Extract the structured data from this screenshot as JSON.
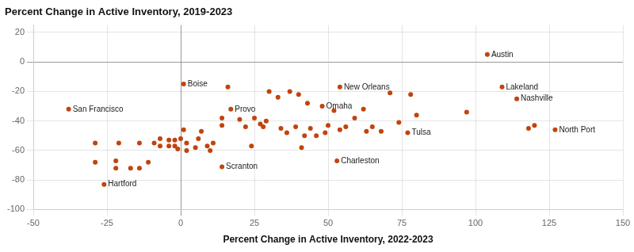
{
  "chart_data": {
    "type": "scatter",
    "title": "Percent Change in Active Inventory, 2019-2023",
    "xlabel": "Percent Change in Active Inventory, 2022-2023",
    "color": "#c1440e",
    "xlim": [
      -50,
      150
    ],
    "ylim": [
      -100,
      25
    ],
    "xticks": [
      -50,
      -25,
      0,
      25,
      50,
      75,
      100,
      125,
      150
    ],
    "yticks": [
      -100,
      -80,
      -60,
      -40,
      -20,
      0,
      20
    ],
    "grid": true,
    "unlabeled_points": [
      {
        "x": -29,
        "y": -55
      },
      {
        "x": -21,
        "y": -55
      },
      {
        "x": -14,
        "y": -55
      },
      {
        "x": -29,
        "y": -68
      },
      {
        "x": -22,
        "y": -67
      },
      {
        "x": -22,
        "y": -72
      },
      {
        "x": -17,
        "y": -72
      },
      {
        "x": -14,
        "y": -72
      },
      {
        "x": -11,
        "y": -68
      },
      {
        "x": -9,
        "y": -55
      },
      {
        "x": -7,
        "y": -57
      },
      {
        "x": -7,
        "y": -52
      },
      {
        "x": -4,
        "y": -57
      },
      {
        "x": -4,
        "y": -53
      },
      {
        "x": -2,
        "y": -57
      },
      {
        "x": -2,
        "y": -53
      },
      {
        "x": -1,
        "y": -59
      },
      {
        "x": 0,
        "y": -52
      },
      {
        "x": 1,
        "y": -46
      },
      {
        "x": 2,
        "y": -55
      },
      {
        "x": 2,
        "y": -60
      },
      {
        "x": 5,
        "y": -58
      },
      {
        "x": 6,
        "y": -52
      },
      {
        "x": 7,
        "y": -47
      },
      {
        "x": 9,
        "y": -57
      },
      {
        "x": 10,
        "y": -60
      },
      {
        "x": 11,
        "y": -55
      },
      {
        "x": 14,
        "y": -43
      },
      {
        "x": 14,
        "y": -38
      },
      {
        "x": 16,
        "y": -17
      },
      {
        "x": 20,
        "y": -39
      },
      {
        "x": 22,
        "y": -44
      },
      {
        "x": 24,
        "y": -57
      },
      {
        "x": 25,
        "y": -38
      },
      {
        "x": 27,
        "y": -42
      },
      {
        "x": 28,
        "y": -44
      },
      {
        "x": 29,
        "y": -40
      },
      {
        "x": 30,
        "y": -20
      },
      {
        "x": 33,
        "y": -24
      },
      {
        "x": 34,
        "y": -45
      },
      {
        "x": 36,
        "y": -48
      },
      {
        "x": 37,
        "y": -20
      },
      {
        "x": 39,
        "y": -44
      },
      {
        "x": 40,
        "y": -22
      },
      {
        "x": 41,
        "y": -58
      },
      {
        "x": 42,
        "y": -50
      },
      {
        "x": 43,
        "y": -28
      },
      {
        "x": 44,
        "y": -45
      },
      {
        "x": 46,
        "y": -50
      },
      {
        "x": 49,
        "y": -48
      },
      {
        "x": 50,
        "y": -43
      },
      {
        "x": 52,
        "y": -33
      },
      {
        "x": 54,
        "y": -46
      },
      {
        "x": 56,
        "y": -44
      },
      {
        "x": 59,
        "y": -38
      },
      {
        "x": 62,
        "y": -32
      },
      {
        "x": 63,
        "y": -47
      },
      {
        "x": 65,
        "y": -44
      },
      {
        "x": 68,
        "y": -47
      },
      {
        "x": 71,
        "y": -21
      },
      {
        "x": 74,
        "y": -41
      },
      {
        "x": 78,
        "y": -22
      },
      {
        "x": 80,
        "y": -36
      },
      {
        "x": 97,
        "y": -34
      },
      {
        "x": 118,
        "y": -45
      },
      {
        "x": 120,
        "y": -43
      }
    ],
    "points": [
      {
        "x": -38,
        "y": -32,
        "label": "San Francisco"
      },
      {
        "x": -26,
        "y": -83,
        "label": "Hartford"
      },
      {
        "x": 1,
        "y": -15,
        "label": "Boise"
      },
      {
        "x": 17,
        "y": -32,
        "label": "Provo"
      },
      {
        "x": 14,
        "y": -71,
        "label": "Scranton"
      },
      {
        "x": 48,
        "y": -30,
        "label": "Omaha"
      },
      {
        "x": 54,
        "y": -17,
        "label": "New Orleans"
      },
      {
        "x": 53,
        "y": -67,
        "label": "Charleston"
      },
      {
        "x": 77,
        "y": -48,
        "label": "Tulsa"
      },
      {
        "x": 104,
        "y": 5,
        "label": "Austin"
      },
      {
        "x": 109,
        "y": -17,
        "label": "Lakeland"
      },
      {
        "x": 114,
        "y": -25,
        "label": "Nashville"
      },
      {
        "x": 127,
        "y": -46,
        "label": "North Port"
      }
    ]
  }
}
